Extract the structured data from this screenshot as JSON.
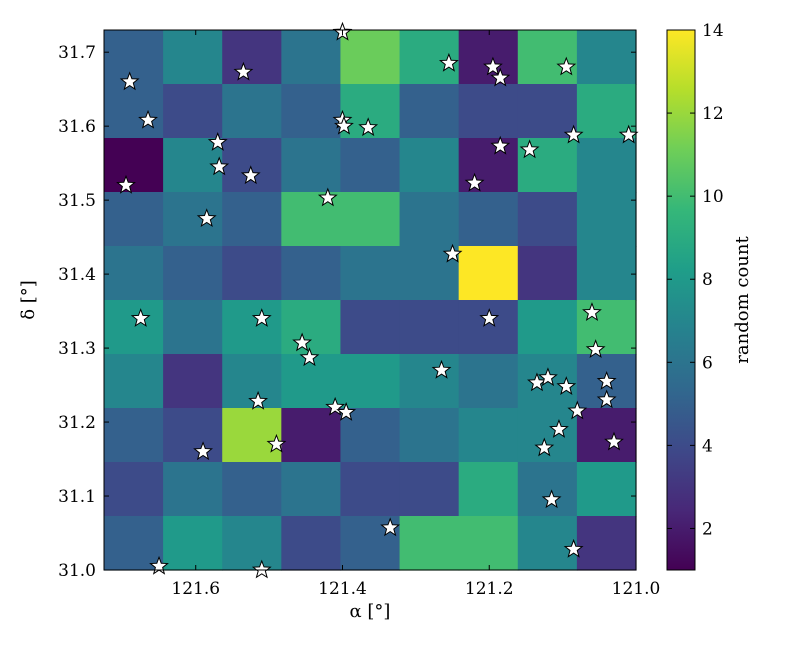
{
  "chart_data": {
    "type": "heatmap",
    "title": "",
    "xlabel": "α [°]",
    "ylabel": "δ [°]",
    "colorbar_label": "random count",
    "x_range": [
      121.725,
      121.0
    ],
    "y_range": [
      31.0,
      31.73
    ],
    "x_ticks": [
      121.6,
      121.4,
      121.2,
      121.0
    ],
    "x_tick_labels": [
      "121.6",
      "121.4",
      "121.2",
      "121.0"
    ],
    "y_ticks": [
      31.0,
      31.1,
      31.2,
      31.3,
      31.4,
      31.5,
      31.6,
      31.7
    ],
    "y_tick_labels": [
      "31.0",
      "31.1",
      "31.2",
      "31.3",
      "31.4",
      "31.5",
      "31.6",
      "31.7"
    ],
    "color_range": [
      1,
      14
    ],
    "colorbar_ticks": [
      2,
      4,
      6,
      8,
      10,
      12,
      14
    ],
    "colorbar_tick_labels": [
      "2",
      "4",
      "6",
      "8",
      "10",
      "12",
      "14"
    ],
    "colormap": "viridis",
    "colormap_stops": [
      "#440154",
      "#482878",
      "#3e4989",
      "#31688e",
      "#26828e",
      "#1f9e89",
      "#35b779",
      "#6ece58",
      "#b5de2b",
      "#fde725"
    ],
    "grid_rows_top_to_bottom": [
      [
        5,
        7,
        3,
        6,
        11,
        9,
        2,
        10,
        7
      ],
      [
        5,
        4,
        6,
        5,
        9,
        5,
        4,
        4,
        9
      ],
      [
        1,
        7,
        4,
        6,
        5,
        7,
        2,
        9,
        7
      ],
      [
        5,
        6,
        5,
        10,
        10,
        6,
        5,
        4,
        7
      ],
      [
        6,
        5,
        4,
        5,
        6,
        6,
        14,
        3,
        7
      ],
      [
        8,
        6,
        8,
        9,
        4,
        4,
        4,
        8,
        10
      ],
      [
        7,
        3,
        7,
        8,
        8,
        7,
        6,
        7,
        5
      ],
      [
        5,
        4,
        12,
        2,
        5,
        6,
        7,
        7,
        2
      ],
      [
        4,
        6,
        5,
        6,
        4,
        4,
        9,
        6,
        8
      ],
      [
        5,
        8,
        7,
        4,
        5,
        10,
        10,
        7,
        3
      ]
    ],
    "stars": [
      [
        121.69,
        31.66
      ],
      [
        121.535,
        31.673
      ],
      [
        121.4,
        31.727
      ],
      [
        121.255,
        31.685
      ],
      [
        121.195,
        31.68
      ],
      [
        121.185,
        31.665
      ],
      [
        121.095,
        31.68
      ],
      [
        121.665,
        31.608
      ],
      [
        121.57,
        31.578
      ],
      [
        121.4,
        31.608
      ],
      [
        121.398,
        31.6
      ],
      [
        121.365,
        31.598
      ],
      [
        121.185,
        31.573
      ],
      [
        121.145,
        31.568
      ],
      [
        121.085,
        31.588
      ],
      [
        121.01,
        31.588
      ],
      [
        121.695,
        31.52
      ],
      [
        121.568,
        31.545
      ],
      [
        121.525,
        31.533
      ],
      [
        121.22,
        31.523
      ],
      [
        121.585,
        31.475
      ],
      [
        121.42,
        31.503
      ],
      [
        121.25,
        31.427
      ],
      [
        121.675,
        31.34
      ],
      [
        121.51,
        31.34
      ],
      [
        121.2,
        31.34
      ],
      [
        121.06,
        31.348
      ],
      [
        121.455,
        31.307
      ],
      [
        121.445,
        31.287
      ],
      [
        121.055,
        31.298
      ],
      [
        121.265,
        31.27
      ],
      [
        121.135,
        31.253
      ],
      [
        121.12,
        31.26
      ],
      [
        121.095,
        31.248
      ],
      [
        121.04,
        31.255
      ],
      [
        121.515,
        31.228
      ],
      [
        121.41,
        31.22
      ],
      [
        121.395,
        31.213
      ],
      [
        121.04,
        31.23
      ],
      [
        121.08,
        31.215
      ],
      [
        121.59,
        31.16
      ],
      [
        121.49,
        31.17
      ],
      [
        121.105,
        31.19
      ],
      [
        121.125,
        31.165
      ],
      [
        121.03,
        31.173
      ],
      [
        121.115,
        31.095
      ],
      [
        121.335,
        31.057
      ],
      [
        121.085,
        31.028
      ],
      [
        121.65,
        31.005
      ],
      [
        121.51,
        31.0
      ]
    ]
  }
}
